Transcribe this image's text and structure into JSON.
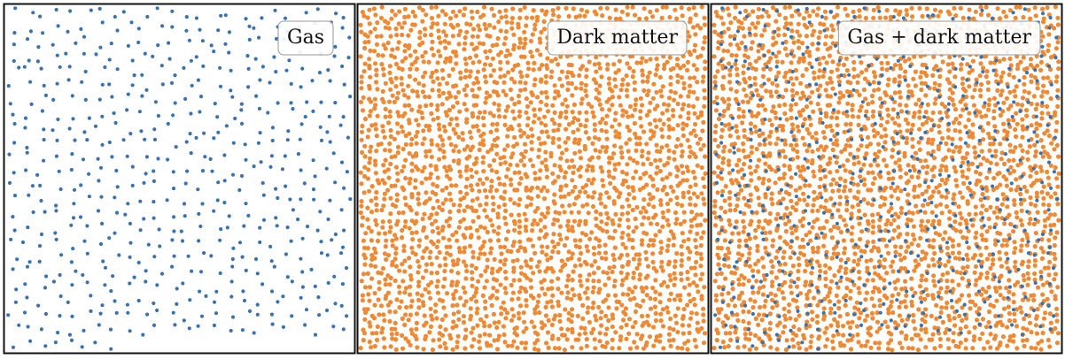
{
  "colors": {
    "gas": "#3a72ad",
    "dark_matter": "#ee8a35",
    "frame": "#111111",
    "legend_border": "#999999"
  },
  "chart_data": [
    {
      "type": "scatter",
      "legend": "Gas",
      "legend_placement": "top-right",
      "grid": false,
      "series": [
        {
          "kind": "gas",
          "approx_points": 560
        }
      ]
    },
    {
      "type": "scatter",
      "legend": "Dark matter",
      "legend_placement": "top-right",
      "grid": false,
      "series": [
        {
          "kind": "dark_matter",
          "approx_points": 2600
        }
      ]
    },
    {
      "type": "scatter",
      "legend": "Gas + dark matter",
      "legend_placement": "top-right",
      "grid": false,
      "series": [
        {
          "kind": "dark_matter",
          "approx_points": 2600
        },
        {
          "kind": "gas",
          "approx_points": 560
        }
      ]
    }
  ]
}
